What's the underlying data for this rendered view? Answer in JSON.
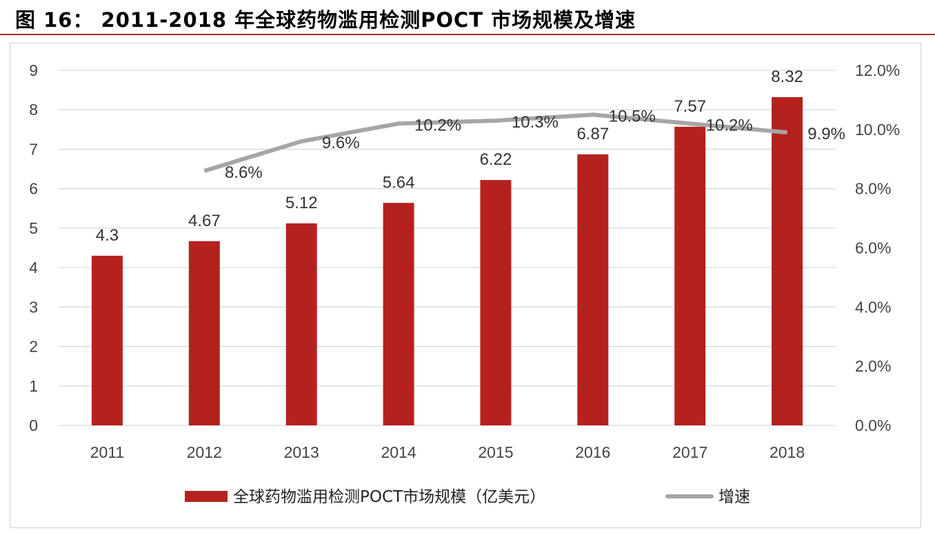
{
  "title": "图 16：  2011-2018 年全球药物滥用检测POCT 市场规模及增速",
  "colors": {
    "bar": "#b5221e",
    "line": "#a6a6a6",
    "rule": "#b22222"
  },
  "chart_data": {
    "type": "bar+line",
    "categories": [
      "2011",
      "2012",
      "2013",
      "2014",
      "2015",
      "2016",
      "2017",
      "2018"
    ],
    "series": [
      {
        "name": "全球药物滥用检测POCT市场规模（亿美元）",
        "type": "bar",
        "axis": "left",
        "values": [
          4.3,
          4.67,
          5.12,
          5.64,
          6.22,
          6.87,
          7.57,
          8.32
        ],
        "labels": [
          "4.3",
          "4.67",
          "5.12",
          "5.64",
          "6.22",
          "6.87",
          "7.57",
          "8.32"
        ]
      },
      {
        "name": "增速",
        "type": "line",
        "axis": "right",
        "values": [
          null,
          8.6,
          9.6,
          10.2,
          10.3,
          10.5,
          10.2,
          9.9
        ],
        "labels": [
          "",
          "8.6%",
          "9.6%",
          "10.2%",
          "10.3%",
          "10.5%",
          "10.2%",
          "9.9%"
        ]
      }
    ],
    "y_left": {
      "range": [
        0,
        9
      ],
      "ticks": [
        "0",
        "1",
        "2",
        "3",
        "4",
        "5",
        "6",
        "7",
        "8",
        "9"
      ]
    },
    "y_right": {
      "range": [
        0,
        12
      ],
      "ticks": [
        "0.0%",
        "2.0%",
        "4.0%",
        "6.0%",
        "8.0%",
        "10.0%",
        "12.0%"
      ]
    },
    "grid": true,
    "legend": "bottom"
  }
}
